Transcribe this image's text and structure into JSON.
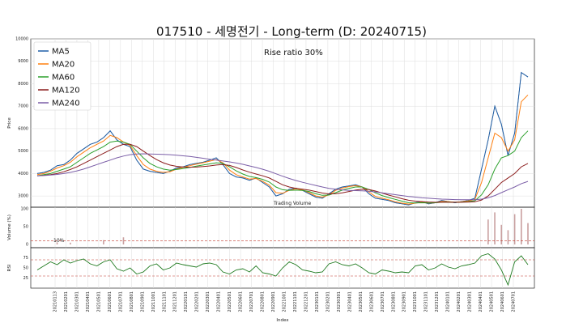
{
  "chart_data": {
    "type": "line",
    "title": "017510 - 세명전기 - Long-term (D: 20240715)",
    "annotation": "Rise ratio 30%",
    "volume_annotation": "Trading Volume",
    "threshold_label": "10%",
    "xlabel": "Index",
    "x_tick_labels": [
      "20210113",
      "20210201",
      "20210301",
      "20210401",
      "20210501",
      "20210601",
      "20210701",
      "20210801",
      "20210901",
      "20211001",
      "20211101",
      "20211201",
      "20220101",
      "20220201",
      "20220301",
      "20220401",
      "20220501",
      "20220601",
      "20220701",
      "20220801",
      "20220901",
      "20221001",
      "20221101",
      "20221201",
      "20230101",
      "20230201",
      "20230301",
      "20230401",
      "20230501",
      "20230601",
      "20230701",
      "20230801",
      "20230901",
      "20231001",
      "20231101",
      "20231201",
      "20240101",
      "20240201",
      "20240301",
      "20240401",
      "20240501",
      "20240601",
      "20240701"
    ],
    "price_panel": {
      "ylabel": "Price",
      "ylim": [
        2500,
        10000
      ],
      "yticks": [
        3000,
        4000,
        5000,
        6000,
        7000,
        8000,
        9000,
        10000
      ],
      "grid": true,
      "legend_position": "top-left",
      "close": [
        4000,
        4050,
        4150,
        4350,
        4400,
        4600,
        4900,
        5100,
        5300,
        5400,
        5600,
        5900,
        5500,
        5300,
        5200,
        4600,
        4200,
        4100,
        4050,
        4000,
        4100,
        4250,
        4300,
        4400,
        4450,
        4500,
        4600,
        4700,
        4400,
        4000,
        3850,
        3800,
        3700,
        3800,
        3600,
        3400,
        3000,
        3100,
        3300,
        3350,
        3250,
        3100,
        2950,
        2900,
        3100,
        3300,
        3400,
        3450,
        3500,
        3400,
        3100,
        2900,
        2850,
        2800,
        2700,
        2650,
        2600,
        2700,
        2750,
        2650,
        2700,
        2800,
        2750,
        2700,
        2750,
        2800,
        2900,
        4200,
        5500,
        7000,
        6200,
        4800,
        5800,
        8500,
        8300
      ],
      "series": [
        {
          "name": "MA5",
          "color": "#1f5fa8",
          "values": [
            4000,
            4050,
            4150,
            4350,
            4400,
            4600,
            4900,
            5100,
            5300,
            5400,
            5600,
            5900,
            5500,
            5300,
            5200,
            4600,
            4200,
            4100,
            4050,
            4000,
            4100,
            4250,
            4300,
            4400,
            4450,
            4500,
            4600,
            4700,
            4400,
            4000,
            3850,
            3800,
            3700,
            3800,
            3600,
            3400,
            3000,
            3100,
            3300,
            3350,
            3250,
            3100,
            2950,
            2900,
            3100,
            3300,
            3400,
            3450,
            3500,
            3400,
            3100,
            2900,
            2850,
            2800,
            2700,
            2650,
            2600,
            2700,
            2750,
            2650,
            2700,
            2800,
            2750,
            2700,
            2750,
            2800,
            2900,
            4200,
            5500,
            7000,
            6200,
            4800,
            5800,
            8500,
            8300
          ]
        },
        {
          "name": "MA20",
          "color": "#ff7f0e",
          "values": [
            3950,
            4000,
            4100,
            4250,
            4350,
            4500,
            4750,
            4950,
            5150,
            5300,
            5450,
            5700,
            5600,
            5400,
            5250,
            4800,
            4400,
            4200,
            4100,
            4050,
            4080,
            4200,
            4280,
            4350,
            4420,
            4480,
            4550,
            4620,
            4480,
            4150,
            3950,
            3850,
            3750,
            3780,
            3650,
            3480,
            3150,
            3120,
            3250,
            3320,
            3270,
            3150,
            3000,
            2950,
            3050,
            3250,
            3350,
            3420,
            3460,
            3400,
            3180,
            2980,
            2900,
            2830,
            2740,
            2680,
            2640,
            2680,
            2720,
            2680,
            2700,
            2760,
            2750,
            2720,
            2740,
            2780,
            2850,
            3600,
            4700,
            5800,
            5600,
            5000,
            5500,
            7200,
            7500
          ]
        },
        {
          "name": "MA60",
          "color": "#2ca02c",
          "values": [
            3900,
            3950,
            4000,
            4100,
            4200,
            4300,
            4500,
            4700,
            4900,
            5050,
            5200,
            5400,
            5450,
            5400,
            5300,
            5000,
            4700,
            4450,
            4300,
            4200,
            4150,
            4180,
            4220,
            4270,
            4330,
            4380,
            4430,
            4480,
            4450,
            4300,
            4120,
            3980,
            3870,
            3820,
            3740,
            3620,
            3400,
            3280,
            3250,
            3260,
            3250,
            3200,
            3100,
            3030,
            3040,
            3150,
            3260,
            3340,
            3400,
            3400,
            3290,
            3140,
            3020,
            2930,
            2850,
            2770,
            2700,
            2690,
            2700,
            2690,
            2700,
            2720,
            2730,
            2720,
            2730,
            2750,
            2790,
            3050,
            3500,
            4200,
            4700,
            4800,
            5000,
            5600,
            5900
          ]
        },
        {
          "name": "MA120",
          "color": "#8b1c1c",
          "values": [
            3900,
            3920,
            3950,
            4000,
            4080,
            4180,
            4300,
            4450,
            4600,
            4750,
            4900,
            5050,
            5200,
            5300,
            5300,
            5200,
            5000,
            4800,
            4620,
            4480,
            4380,
            4320,
            4290,
            4280,
            4290,
            4310,
            4340,
            4380,
            4400,
            4360,
            4270,
            4160,
            4060,
            3980,
            3900,
            3800,
            3650,
            3500,
            3400,
            3340,
            3300,
            3260,
            3200,
            3130,
            3090,
            3100,
            3140,
            3200,
            3260,
            3300,
            3290,
            3220,
            3130,
            3040,
            2960,
            2880,
            2810,
            2770,
            2750,
            2730,
            2720,
            2720,
            2720,
            2720,
            2720,
            2730,
            2740,
            2820,
            3000,
            3300,
            3600,
            3800,
            4000,
            4300,
            4450
          ]
        },
        {
          "name": "MA240",
          "color": "#7b5ea7",
          "values": [
            3900,
            3910,
            3930,
            3960,
            4000,
            4050,
            4120,
            4200,
            4300,
            4400,
            4500,
            4600,
            4700,
            4780,
            4840,
            4870,
            4880,
            4870,
            4860,
            4850,
            4840,
            4820,
            4790,
            4760,
            4720,
            4680,
            4640,
            4600,
            4560,
            4520,
            4470,
            4410,
            4340,
            4270,
            4190,
            4100,
            3990,
            3880,
            3780,
            3690,
            3610,
            3540,
            3470,
            3400,
            3340,
            3300,
            3270,
            3250,
            3240,
            3230,
            3210,
            3180,
            3140,
            3100,
            3060,
            3020,
            2980,
            2950,
            2920,
            2900,
            2880,
            2860,
            2850,
            2840,
            2830,
            2830,
            2830,
            2860,
            2920,
            3020,
            3150,
            3280,
            3400,
            3550,
            3650
          ]
        }
      ]
    },
    "volume_panel": {
      "ylabel": "Volume (%)",
      "yticks": [
        0,
        50,
        100
      ],
      "ylim": [
        0,
        100
      ],
      "threshold": 10,
      "bars": [
        0,
        0,
        0,
        6,
        0,
        5,
        0,
        0,
        0,
        0,
        12,
        0,
        0,
        20,
        0,
        0,
        0,
        0,
        0,
        0,
        0,
        0,
        0,
        0,
        0,
        0,
        0,
        0,
        0,
        0,
        0,
        0,
        0,
        0,
        0,
        0,
        0,
        0,
        0,
        0,
        0,
        0,
        0,
        0,
        0,
        0,
        0,
        0,
        0,
        0,
        0,
        0,
        0,
        0,
        0,
        0,
        0,
        0,
        0,
        0,
        0,
        0,
        0,
        0,
        0,
        0,
        0,
        0,
        70,
        90,
        55,
        40,
        85,
        110,
        60
      ]
    },
    "rsi_panel": {
      "ylabel": "RSI",
      "yticks": [
        25,
        50,
        75
      ],
      "ylim": [
        0,
        100
      ],
      "lines": [
        30,
        70
      ],
      "values": [
        45,
        55,
        65,
        58,
        70,
        62,
        68,
        72,
        60,
        55,
        65,
        70,
        48,
        42,
        50,
        35,
        40,
        55,
        60,
        45,
        50,
        62,
        58,
        55,
        52,
        60,
        62,
        58,
        40,
        35,
        45,
        48,
        40,
        55,
        38,
        35,
        30,
        50,
        65,
        58,
        45,
        42,
        38,
        40,
        60,
        65,
        58,
        55,
        60,
        50,
        38,
        35,
        45,
        42,
        38,
        40,
        38,
        55,
        58,
        45,
        50,
        60,
        52,
        48,
        55,
        58,
        62,
        80,
        85,
        72,
        45,
        8,
        65,
        80,
        58
      ]
    }
  }
}
